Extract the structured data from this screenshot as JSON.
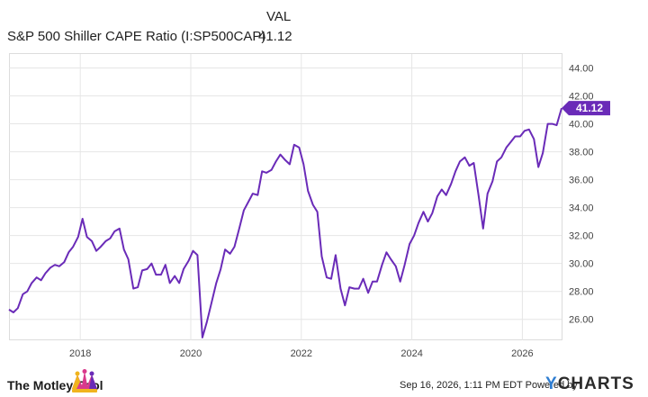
{
  "legend": {
    "column_header": "VAL",
    "series_name": "S&P 500 Shiller CAPE Ratio (I:SP500CAP)",
    "series_value": "41.12"
  },
  "chart_data": {
    "type": "line",
    "title": "",
    "xlabel": "",
    "ylabel": "",
    "ylim": [
      24.5,
      45.0
    ],
    "y_ticks": [
      "26.00",
      "28.00",
      "30.00",
      "32.00",
      "34.00",
      "36.00",
      "38.00",
      "40.00",
      "42.00",
      "44.00"
    ],
    "x_tick_labels": [
      "2018",
      "2020",
      "2022",
      "2024",
      "2026"
    ],
    "x_tick_positions": [
      2018,
      2020,
      2022,
      2024,
      2026
    ],
    "xlim": [
      2016.71,
      2026.71
    ],
    "grid": true,
    "y_axis_side": "right",
    "line_color": "#6a2bb8",
    "last_value_label": "41.12",
    "series": [
      {
        "x": [
          2016.71,
          2016.79,
          2016.87,
          2016.96,
          2017.04,
          2017.12,
          2017.21,
          2017.29,
          2017.37,
          2017.46,
          2017.54,
          2017.62,
          2017.71,
          2017.79,
          2017.87,
          2017.96,
          2018.04,
          2018.12,
          2018.21,
          2018.29,
          2018.37,
          2018.46,
          2018.54,
          2018.62,
          2018.71,
          2018.79,
          2018.87,
          2018.96,
          2019.04,
          2019.12,
          2019.21,
          2019.29,
          2019.37,
          2019.46,
          2019.54,
          2019.62,
          2019.71,
          2019.79,
          2019.87,
          2019.96,
          2020.04,
          2020.12,
          2020.21,
          2020.29,
          2020.37,
          2020.46,
          2020.54,
          2020.62,
          2020.71,
          2020.79,
          2020.87,
          2020.96,
          2021.04,
          2021.12,
          2021.21,
          2021.29,
          2021.37,
          2021.46,
          2021.54,
          2021.62,
          2021.71,
          2021.79,
          2021.87,
          2021.96,
          2022.04,
          2022.12,
          2022.21,
          2022.29,
          2022.37,
          2022.46,
          2022.54,
          2022.62,
          2022.71,
          2022.79,
          2022.87,
          2022.96,
          2023.04,
          2023.12,
          2023.21,
          2023.29,
          2023.37,
          2023.46,
          2023.54,
          2023.62,
          2023.71,
          2023.79,
          2023.87,
          2023.96,
          2024.04,
          2024.12,
          2024.21,
          2024.29,
          2024.37,
          2024.46,
          2024.54,
          2024.62,
          2024.71,
          2024.79,
          2024.87,
          2024.96,
          2025.04,
          2025.12,
          2025.21,
          2025.29,
          2025.37,
          2025.46,
          2025.54,
          2025.62,
          2025.71,
          2025.79,
          2025.87,
          2025.96,
          2026.04,
          2026.12,
          2026.21,
          2026.29,
          2026.37,
          2026.46,
          2026.54,
          2026.62,
          2026.71
        ],
        "y": [
          26.7,
          26.5,
          26.8,
          27.8,
          28.0,
          28.6,
          29.0,
          28.8,
          29.3,
          29.7,
          29.9,
          29.8,
          30.1,
          30.8,
          31.2,
          31.9,
          33.2,
          31.9,
          31.6,
          30.9,
          31.2,
          31.6,
          31.8,
          32.3,
          32.5,
          31.0,
          30.3,
          28.2,
          28.3,
          29.5,
          29.6,
          30.0,
          29.2,
          29.2,
          29.9,
          28.6,
          29.1,
          28.6,
          29.6,
          30.2,
          30.9,
          30.6,
          24.7,
          25.8,
          27.1,
          28.6,
          29.6,
          31.0,
          30.7,
          31.2,
          32.4,
          33.8,
          34.4,
          35.0,
          34.9,
          36.6,
          36.5,
          36.7,
          37.3,
          37.8,
          37.4,
          37.1,
          38.5,
          38.3,
          37.1,
          35.2,
          34.2,
          33.7,
          30.5,
          29.0,
          28.9,
          30.6,
          28.2,
          27.0,
          28.3,
          28.2,
          28.2,
          28.9,
          27.9,
          28.7,
          28.7,
          29.9,
          30.8,
          30.3,
          29.8,
          28.7,
          29.9,
          31.4,
          32.0,
          32.9,
          33.7,
          33.0,
          33.6,
          34.8,
          35.3,
          34.9,
          35.7,
          36.6,
          37.3,
          37.6,
          37.0,
          37.2,
          34.8,
          32.5,
          35.0,
          35.9,
          37.3,
          37.6,
          38.3,
          38.7,
          39.1,
          39.1,
          39.5,
          39.6,
          38.9,
          36.9,
          37.9,
          40.0,
          40.0,
          39.9,
          41.12
        ]
      }
    ]
  },
  "footer": {
    "brand": "The Motley Fool",
    "timestamp": "Sep 16, 2026, 1:11 PM EDT",
    "powered_by": "Powered by",
    "provider": "YCHARTS",
    "provider_mark": "Y",
    "provider_rest": "CHARTS"
  }
}
